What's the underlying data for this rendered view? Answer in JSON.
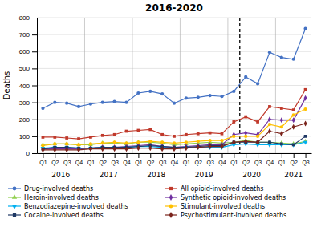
{
  "chart_data": {
    "type": "line",
    "title": "2016-2020",
    "y_label": "Deaths",
    "categories": [
      "Q1",
      "Q2",
      "Q3",
      "Q4",
      "Q1",
      "Q2",
      "Q3",
      "Q4",
      "Q1",
      "Q2",
      "Q3",
      "Q4",
      "Q1",
      "Q2",
      "Q3",
      "Q4",
      "Q1",
      "Q2",
      "Q3",
      "Q4",
      "Q1",
      "Q2",
      "Q3"
    ],
    "ylim": [
      0,
      800
    ],
    "yticks": [
      0,
      100,
      200,
      300,
      400,
      500,
      600,
      700,
      800
    ],
    "grid": true,
    "legend": "bottom",
    "annotations": [
      {
        "text": "2016",
        "x": 1.5
      },
      {
        "text": "2017",
        "x": 5.5
      },
      {
        "text": "2018",
        "x": 9.5
      },
      {
        "text": "2019",
        "x": 13.5
      },
      {
        "text": "2020",
        "x": 17.5
      },
      {
        "text": "2021",
        "x": 21.0
      }
    ],
    "reference_lines": [
      {
        "x": 16.5,
        "line_style": "dashed",
        "color": "#000000"
      },
      {
        "x": 3.5,
        "line_style": "solid",
        "color": "#AAAAAA"
      },
      {
        "x": 7.5,
        "line_style": "solid",
        "color": "#AAAAAA"
      },
      {
        "x": 11.5,
        "line_style": "solid",
        "color": "#AAAAAA"
      },
      {
        "x": 15.5,
        "line_style": "solid",
        "color": "#AAAAAA"
      },
      {
        "x": 19.5,
        "line_style": "solid",
        "color": "#AAAAAA"
      }
    ],
    "series": [
      {
        "name": "Drug-involved deaths",
        "color": "#4472C4",
        "marker": "circle",
        "values": [
          265,
          300,
          295,
          275,
          290,
          300,
          305,
          300,
          355,
          365,
          350,
          295,
          325,
          330,
          340,
          335,
          365,
          450,
          410,
          595,
          565,
          555,
          735
        ]
      },
      {
        "name": "All opioid-involved deaths",
        "color": "#C0392B",
        "marker": "square",
        "values": [
          95,
          95,
          90,
          85,
          95,
          105,
          110,
          130,
          135,
          140,
          110,
          100,
          110,
          115,
          120,
          115,
          185,
          215,
          185,
          275,
          265,
          255,
          375
        ]
      },
      {
        "name": "Heroin-involved deaths",
        "color": "#92D050",
        "marker": "triangle-up",
        "values": [
          50,
          55,
          55,
          50,
          50,
          60,
          60,
          55,
          65,
          65,
          60,
          50,
          55,
          60,
          65,
          60,
          65,
          75,
          65,
          65,
          60,
          55,
          70
        ]
      },
      {
        "name": "Synthetic opioid-involved deaths",
        "color": "#7030A0",
        "marker": "diamond",
        "values": [
          25,
          25,
          25,
          25,
          30,
          35,
          35,
          40,
          45,
          50,
          40,
          35,
          40,
          45,
          50,
          50,
          110,
          120,
          110,
          200,
          195,
          195,
          325
        ]
      },
      {
        "name": "Benzodiazepine-involved deaths",
        "color": "#00B0F0",
        "marker": "triangle-down",
        "values": [
          30,
          35,
          35,
          30,
          30,
          35,
          35,
          35,
          40,
          40,
          35,
          30,
          35,
          35,
          35,
          35,
          50,
          55,
          50,
          50,
          50,
          50,
          65
        ]
      },
      {
        "name": "Stimulant-involved deaths",
        "color": "#FFC000",
        "marker": "circle",
        "values": [
          45,
          55,
          55,
          50,
          55,
          60,
          65,
          60,
          65,
          70,
          65,
          60,
          65,
          70,
          75,
          75,
          100,
          100,
          100,
          170,
          155,
          225,
          260
        ]
      },
      {
        "name": "Cocaine-involved deaths",
        "color": "#1F3864",
        "marker": "square",
        "values": [
          25,
          35,
          35,
          30,
          30,
          35,
          35,
          35,
          40,
          45,
          40,
          35,
          35,
          40,
          45,
          45,
          65,
          65,
          65,
          65,
          55,
          50,
          100
        ]
      },
      {
        "name": "Psychostimulant-involved deaths",
        "color": "#7B241C",
        "marker": "diamond",
        "values": [
          20,
          20,
          20,
          20,
          25,
          25,
          25,
          25,
          30,
          30,
          25,
          25,
          30,
          35,
          40,
          40,
          65,
          70,
          65,
          130,
          115,
          155,
          175
        ]
      }
    ]
  }
}
